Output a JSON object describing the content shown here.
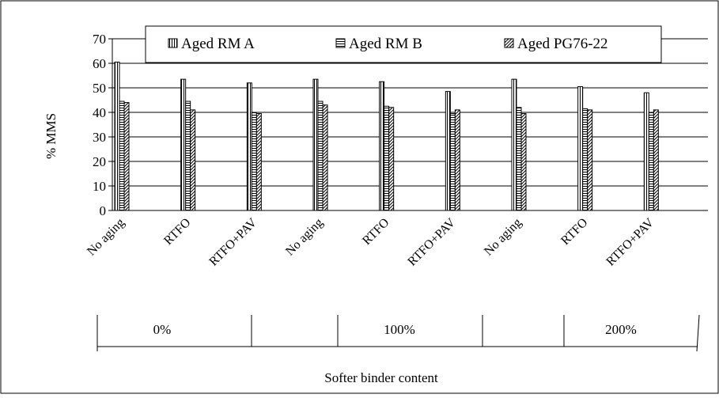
{
  "chart_data": {
    "type": "bar",
    "title": "",
    "ylabel": "% MMS",
    "xlabel": "Softer binder content",
    "ylim": [
      0,
      70
    ],
    "yticks": [
      0,
      10,
      20,
      30,
      40,
      50,
      60,
      70
    ],
    "grid": "horizontal",
    "legend_position": "top-right",
    "categories": [
      "No aging",
      "RTFO",
      "RTFO+PAV",
      "No aging",
      "RTFO",
      "RTFO+PAV",
      "No aging",
      "RTFO",
      "RTFO+PAV"
    ],
    "groups": [
      {
        "label": "0%",
        "categories": [
          "No aging",
          "RTFO",
          "RTFO+PAV"
        ]
      },
      {
        "label": "100%",
        "categories": [
          "No aging",
          "RTFO",
          "RTFO+PAV"
        ]
      },
      {
        "label": "200%",
        "categories": [
          "No aging",
          "RTFO",
          "RTFO+PAV"
        ]
      }
    ],
    "series": [
      {
        "name": "Aged RM A",
        "pattern": "vertical-lines",
        "values": [
          60.5,
          53.5,
          52,
          53.5,
          52.5,
          48.5,
          53.5,
          50.5,
          48
        ]
      },
      {
        "name": "Aged RM B",
        "pattern": "horizontal-lines",
        "values": [
          44.5,
          44.5,
          40,
          44.5,
          42.5,
          39.5,
          42,
          41.5,
          40
        ]
      },
      {
        "name": "Aged PG76-22",
        "pattern": "diagonal-lines",
        "values": [
          44,
          41,
          39.5,
          43,
          42,
          41,
          39.5,
          41,
          41
        ]
      }
    ]
  }
}
